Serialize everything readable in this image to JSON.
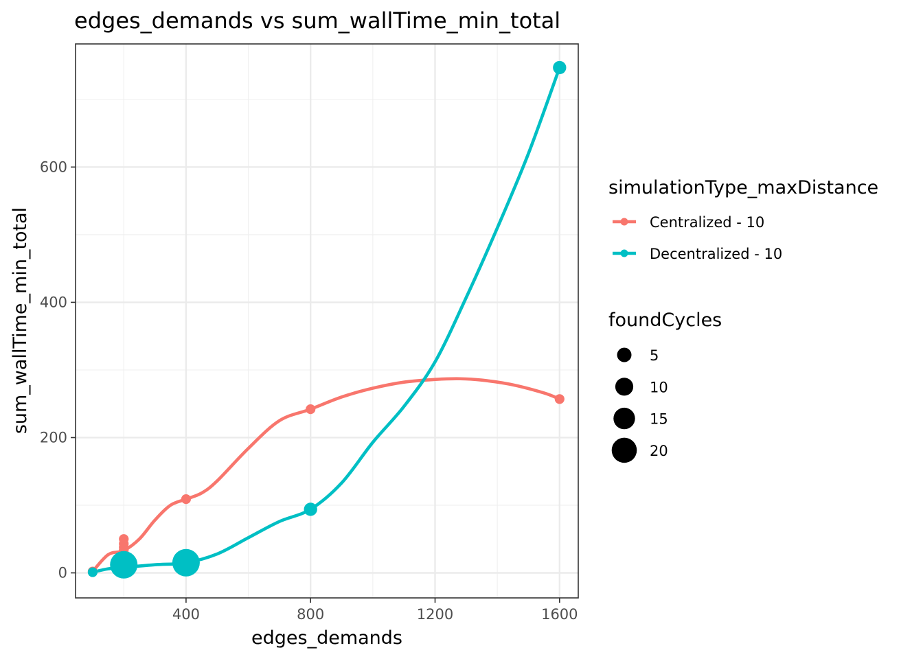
{
  "chart_data": {
    "type": "line",
    "title": "edges_demands  vs  sum_wallTime_min_total",
    "xlabel": "edges_demands",
    "ylabel": "sum_wallTime_min_total",
    "xlim": [
      45,
      1660
    ],
    "ylim": [
      -37,
      782
    ],
    "x_ticks": [
      400,
      800,
      1200,
      1600
    ],
    "y_ticks": [
      0,
      200,
      400,
      600
    ],
    "x_minor": [
      200,
      600,
      1000,
      1400
    ],
    "y_minor": [
      100,
      300,
      500,
      700
    ],
    "grid": true,
    "legend_position": "right",
    "series": [
      {
        "name": "Centralized - 10",
        "color": "#F8766D",
        "points": [
          {
            "x": 100,
            "y": 2,
            "size": 1
          },
          {
            "x": 200,
            "y": 20,
            "size": 1
          },
          {
            "x": 200,
            "y": 25,
            "size": 1
          },
          {
            "x": 200,
            "y": 30,
            "size": 1
          },
          {
            "x": 200,
            "y": 34,
            "size": 1
          },
          {
            "x": 200,
            "y": 38,
            "size": 1
          },
          {
            "x": 200,
            "y": 43,
            "size": 1
          },
          {
            "x": 200,
            "y": 50,
            "size": 1
          },
          {
            "x": 400,
            "y": 109,
            "size": 1
          },
          {
            "x": 800,
            "y": 242,
            "size": 1
          },
          {
            "x": 1600,
            "y": 257,
            "size": 1
          }
        ],
        "smooth": [
          [
            100,
            2
          ],
          [
            150,
            27
          ],
          [
            200,
            33
          ],
          [
            250,
            50
          ],
          [
            300,
            78
          ],
          [
            350,
            100
          ],
          [
            400,
            109
          ],
          [
            450,
            118
          ],
          [
            500,
            136
          ],
          [
            600,
            184
          ],
          [
            700,
            225
          ],
          [
            800,
            242
          ],
          [
            900,
            260
          ],
          [
            1000,
            273
          ],
          [
            1100,
            282
          ],
          [
            1200,
            286
          ],
          [
            1280,
            287
          ],
          [
            1350,
            285
          ],
          [
            1450,
            278
          ],
          [
            1550,
            266
          ],
          [
            1600,
            257
          ]
        ]
      },
      {
        "name": "Decentralized - 10",
        "color": "#00BFC4",
        "points": [
          {
            "x": 100,
            "y": 1,
            "size": 1
          },
          {
            "x": 200,
            "y": 12,
            "size": 22
          },
          {
            "x": 400,
            "y": 15,
            "size": 22
          },
          {
            "x": 800,
            "y": 94,
            "size": 3
          },
          {
            "x": 1600,
            "y": 747,
            "size": 3
          }
        ],
        "smooth": [
          [
            100,
            1
          ],
          [
            150,
            6
          ],
          [
            200,
            8
          ],
          [
            300,
            12
          ],
          [
            400,
            15
          ],
          [
            500,
            28
          ],
          [
            600,
            52
          ],
          [
            700,
            76
          ],
          [
            800,
            94
          ],
          [
            900,
            133
          ],
          [
            1000,
            193
          ],
          [
            1100,
            246
          ],
          [
            1200,
            312
          ],
          [
            1300,
            407
          ],
          [
            1400,
            510
          ],
          [
            1500,
            620
          ],
          [
            1600,
            747
          ]
        ]
      }
    ]
  },
  "legend": {
    "color_title": "simulationType_maxDistance",
    "color_entries": [
      "Centralized - 10",
      "Decentralized - 10"
    ],
    "size_title": "foundCycles",
    "size_entries": [
      "5",
      "10",
      "15",
      "20"
    ]
  }
}
